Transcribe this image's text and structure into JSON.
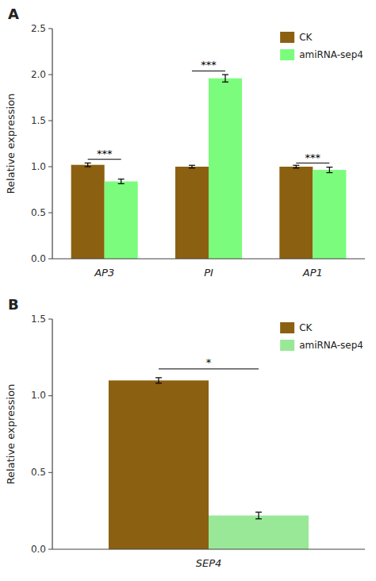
{
  "chart_data": [
    {
      "type": "bar",
      "title": "A",
      "categories": [
        "AP3",
        "PI",
        "AP1"
      ],
      "y_label": "Relative expression",
      "series": [
        {
          "name": "CK",
          "color": "#8B6010",
          "values": [
            1.02,
            1.0,
            1.0
          ],
          "errors": [
            0.02,
            0.015,
            0.015
          ]
        },
        {
          "name": "amiRNA-sep4",
          "color": "#7CFC7C",
          "values": [
            0.84,
            1.96,
            0.965
          ],
          "errors": [
            0.025,
            0.04,
            0.03
          ]
        }
      ],
      "ylim": [
        0,
        2.5
      ],
      "yticks": [
        {
          "value": 0.0,
          "label": "0.0"
        },
        0.5,
        {
          "value": 1.0,
          "label": "1.0"
        },
        1.5,
        {
          "value": 2.0,
          "label": "2.0"
        },
        2.5
      ],
      "annotations": [
        {
          "text": "***",
          "line_y": 1.08,
          "text_y": 1.1
        },
        {
          "text": "***",
          "line_y": 2.04,
          "text_y": 2.07
        },
        {
          "text": "***",
          "line_y": 1.04,
          "text_y": 1.06
        }
      ],
      "legend": "upper right"
    },
    {
      "type": "bar",
      "title": "B",
      "categories": [
        "SEP4"
      ],
      "y_label": "Relative expression",
      "series": [
        {
          "name": "CK",
          "color": "#8B6010",
          "values": [
            1.1
          ],
          "errors": [
            0.018
          ]
        },
        {
          "name": "amiRNA-sep4",
          "color": "#98E898",
          "values": [
            0.22
          ],
          "errors": [
            0.022
          ]
        }
      ],
      "ylim": [
        0,
        1.5
      ],
      "yticks": [
        {
          "value": 0.0,
          "label": "0.0"
        },
        0.5,
        {
          "value": 1.0,
          "label": "1.0"
        },
        1.5
      ],
      "annotations": [
        {
          "text": "*",
          "line_y": 1.175,
          "text_y": 1.195
        }
      ],
      "legend": "upper right"
    }
  ]
}
